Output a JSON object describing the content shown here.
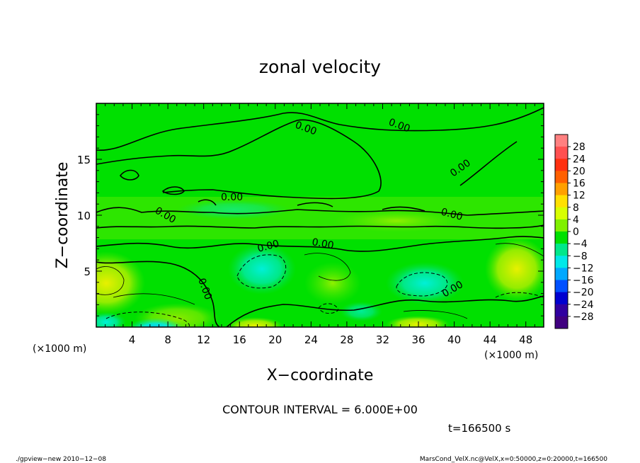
{
  "chart_data": {
    "type": "heatmap",
    "title": "zonal velocity",
    "xlabel": "X−coordinate",
    "ylabel": "Z−coordinate",
    "x_unit_label": "(×1000 m)",
    "y_unit_label": "(×1000 m)",
    "xlim": [
      0,
      50
    ],
    "ylim": [
      0,
      20
    ],
    "x_ticks": [
      "4",
      "8",
      "12",
      "16",
      "20",
      "24",
      "28",
      "32",
      "36",
      "40",
      "44",
      "48"
    ],
    "x_tick_values": [
      4,
      8,
      12,
      16,
      20,
      24,
      28,
      32,
      36,
      40,
      44,
      48
    ],
    "y_ticks": [
      "5",
      "10",
      "15"
    ],
    "y_tick_values": [
      5,
      10,
      15
    ],
    "contour_labels": [
      "0.00",
      "0.00",
      "0.00",
      "0.00",
      "0.00",
      "0.00",
      "0.00",
      "0.00",
      "0.00",
      "0.00"
    ],
    "contour_interval_text": "CONTOUR INTERVAL = 6.000E+00",
    "time_text": "t=166500 s",
    "colorbar": {
      "labels": [
        "28",
        "24",
        "20",
        "16",
        "12",
        "8",
        "4",
        "0",
        "−4",
        "−8",
        "−12",
        "−16",
        "−20",
        "−24",
        "−28"
      ],
      "values": [
        28,
        24,
        20,
        16,
        12,
        8,
        4,
        0,
        -4,
        -8,
        -12,
        -16,
        -20,
        -24,
        -28
      ],
      "colors": [
        "#ff8080",
        "#ff5050",
        "#ff3010",
        "#ff6000",
        "#ffa000",
        "#ffe000",
        "#d8ff00",
        "#80f000",
        "#00e000",
        "#00e88a",
        "#00e8e8",
        "#00a8ff",
        "#0050ff",
        "#0000d0",
        "#3000a0",
        "#400080"
      ]
    }
  },
  "footer": {
    "left": "./gpview−new   2010−12−08",
    "right": "MarsCond_VelX.nc@VelX,x=0:50000,z=0:20000,t=166500"
  }
}
